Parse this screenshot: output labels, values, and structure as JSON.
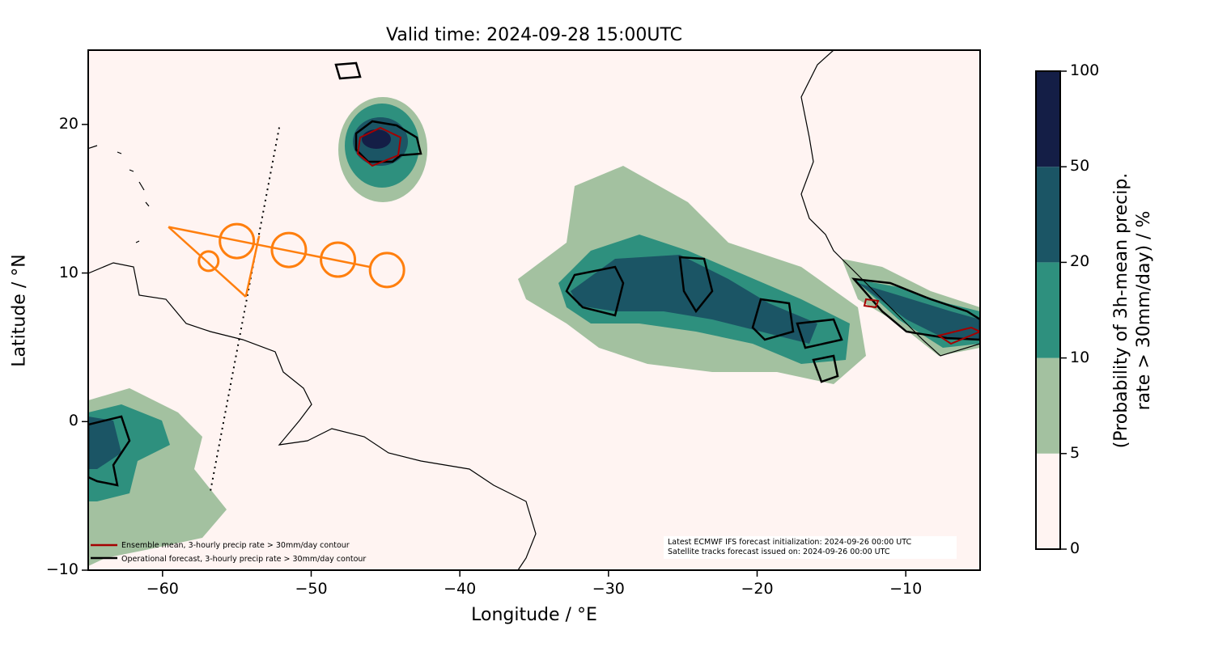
{
  "chart_data": {
    "type": "map",
    "title": "Valid time: 2024-09-28 15:00UTC",
    "xlabel": "Longitude / °E",
    "ylabel": "Latitude / °N",
    "xlim": [
      -65,
      -5
    ],
    "ylim": [
      -10,
      25
    ],
    "xticks": [
      -60,
      -50,
      -40,
      -30,
      -20,
      -10
    ],
    "xtick_labels": [
      "−60",
      "−50",
      "−40",
      "−30",
      "−20",
      "−10"
    ],
    "yticks": [
      -10,
      0,
      10,
      20
    ],
    "ytick_labels": [
      "−10",
      "0",
      "10",
      "20"
    ],
    "colorbar": {
      "label_line1": "(Probability of 3h-mean precip.",
      "label_line2": "rate > 30mm/day) / %",
      "levels": [
        0,
        5,
        10,
        20,
        50,
        100
      ],
      "level_labels": [
        "0",
        "5",
        "10",
        "20",
        "50",
        "100"
      ],
      "colors": [
        "#fff4f2",
        "#a3c1a0",
        "#2e907e",
        "#1b5565",
        "#141e46"
      ]
    },
    "legend": [
      {
        "label": "Ensemble mean, 3-hourly precip rate > 30mm/day contour",
        "color": "#a50000"
      },
      {
        "label": "Operational forecast, 3-hourly precip rate > 30mm/day contour",
        "color": "#000000"
      }
    ],
    "annotations": [
      "Latest ECMWF IFS forecast initialization: 2024-09-26 00:00 UTC",
      "Satellite tracks forecast issued on: 2024-09-26 00:00 UTC"
    ],
    "satellite_track_dotted": [
      [
        -52.15,
        19.8
      ],
      [
        -56.8,
        -4.8
      ]
    ],
    "orange_track": {
      "color": "#ff7f0e",
      "lines": [
        [
          [
            -59.6,
            13.1
          ],
          [
            -46.0,
            10.4
          ]
        ],
        [
          [
            -59.6,
            13.1
          ],
          [
            -54.4,
            8.4
          ]
        ],
        [
          [
            -54.4,
            8.4
          ],
          [
            -53.5,
            12.5
          ]
        ]
      ],
      "circles": [
        [
          -56.9,
          10.8
        ],
        [
          -55.0,
          12.15
        ],
        [
          -51.5,
          11.55
        ],
        [
          -48.2,
          10.9
        ],
        [
          -44.9,
          10.2
        ]
      ]
    }
  }
}
